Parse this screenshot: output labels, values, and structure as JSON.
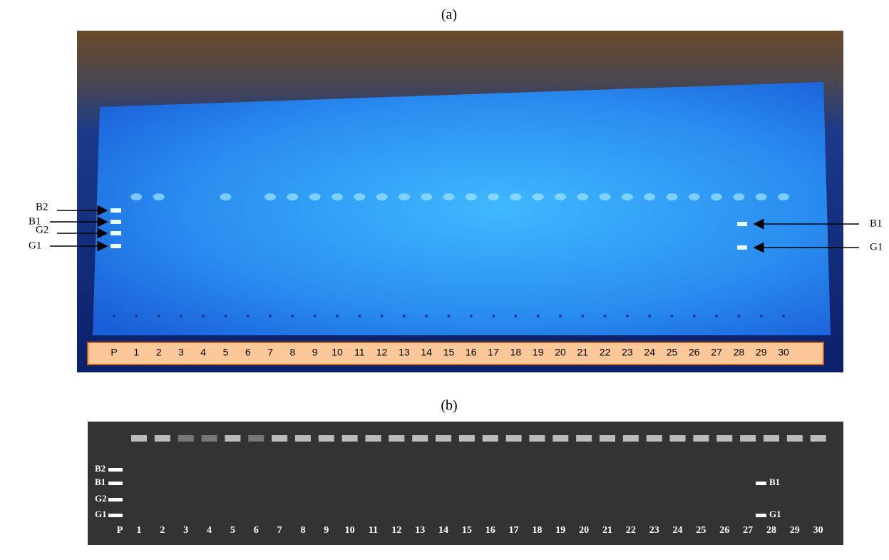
{
  "panel_a": {
    "label": "(a)",
    "lanes": [
      "P",
      "1",
      "2",
      "3",
      "4",
      "5",
      "6",
      "7",
      "8",
      "9",
      "10",
      "11",
      "12",
      "13",
      "14",
      "15",
      "16",
      "17",
      "18",
      "19",
      "20",
      "21",
      "22",
      "23",
      "24",
      "25",
      "26",
      "27",
      "28",
      "29",
      "30"
    ],
    "left_markers": [
      "B2",
      "B1",
      "G2",
      "G1"
    ],
    "right_markers": [
      "B1",
      "G1"
    ]
  },
  "panel_b": {
    "label": "(b)",
    "lanes": [
      "P",
      "1",
      "2",
      "3",
      "4",
      "5",
      "6",
      "7",
      "8",
      "9",
      "10",
      "11",
      "12",
      "13",
      "14",
      "15",
      "16",
      "17",
      "18",
      "19",
      "20",
      "21",
      "22",
      "23",
      "24",
      "25",
      "26",
      "27",
      "28",
      "29",
      "30"
    ],
    "left_markers": [
      "B2",
      "B1",
      "G2",
      "G1"
    ],
    "right_markers": [
      "B1",
      "G1"
    ]
  }
}
